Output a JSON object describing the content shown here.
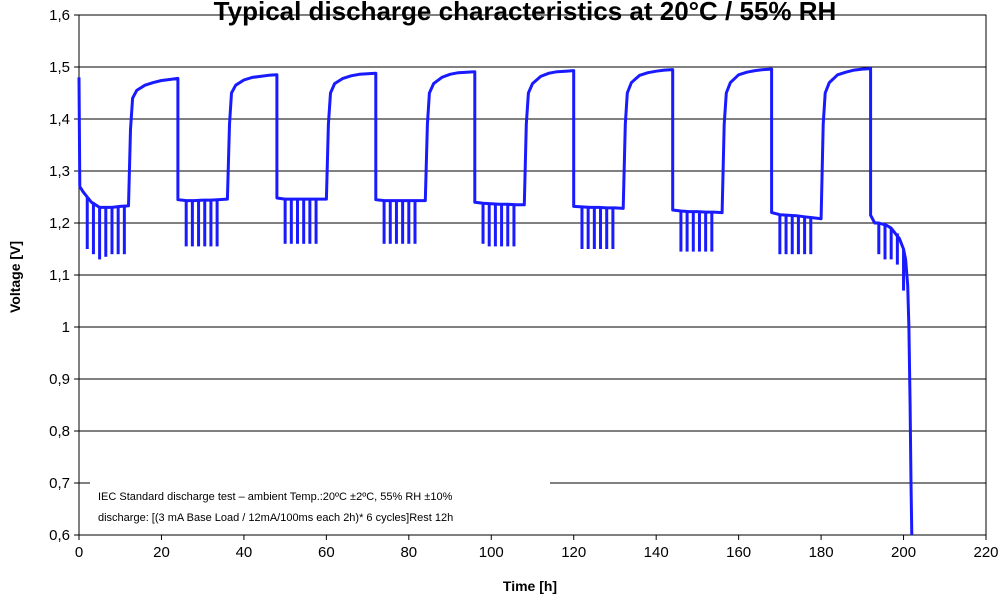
{
  "chart_data": {
    "type": "line",
    "title": "Typical discharge characteristics at 20°C / 55% RH",
    "xlabel": "Time [h]",
    "ylabel": "Voltage [V]",
    "xlim": [
      0,
      220
    ],
    "ylim": [
      0.6,
      1.6
    ],
    "x_ticks": [
      "0",
      "20",
      "40",
      "60",
      "80",
      "100",
      "120",
      "140",
      "160",
      "180",
      "200",
      "220"
    ],
    "y_ticks": [
      "0,6",
      "0,7",
      "0,8",
      "0,9",
      "1",
      "1,1",
      "1,2",
      "1,3",
      "1,4",
      "1,5",
      "1,6"
    ],
    "grid": "horizontal",
    "series_color": "#1a1aff",
    "annotations": [
      "IEC Standard discharge test – ambient Temp.:20ºC ±2ºC, 55% RH ±10%",
      "discharge: [(3 mA Base Load / 12mA/100ms each 2h)* 6 cycles]Rest 12h"
    ],
    "series": [
      {
        "points": [
          [
            0,
            1.48
          ],
          [
            0.2,
            1.27
          ],
          [
            1,
            1.26
          ],
          [
            2,
            1.25
          ],
          [
            3,
            1.24
          ],
          [
            4,
            1.235
          ],
          [
            5,
            1.23
          ],
          [
            6,
            1.23
          ],
          [
            8,
            1.23
          ],
          [
            10,
            1.232
          ],
          [
            12,
            1.233
          ],
          [
            12.5,
            1.38
          ],
          [
            13,
            1.44
          ],
          [
            14,
            1.455
          ],
          [
            16,
            1.465
          ],
          [
            18,
            1.47
          ],
          [
            20,
            1.474
          ],
          [
            22,
            1.476
          ],
          [
            24,
            1.478
          ],
          [
            24,
            1.245
          ],
          [
            26,
            1.243
          ],
          [
            28,
            1.243
          ],
          [
            30,
            1.244
          ],
          [
            32,
            1.244
          ],
          [
            34,
            1.245
          ],
          [
            36,
            1.246
          ],
          [
            36.5,
            1.39
          ],
          [
            37,
            1.45
          ],
          [
            38,
            1.465
          ],
          [
            40,
            1.475
          ],
          [
            42,
            1.48
          ],
          [
            44,
            1.482
          ],
          [
            46,
            1.484
          ],
          [
            48,
            1.485
          ],
          [
            48,
            1.248
          ],
          [
            50,
            1.246
          ],
          [
            52,
            1.246
          ],
          [
            54,
            1.246
          ],
          [
            56,
            1.246
          ],
          [
            58,
            1.246
          ],
          [
            60,
            1.246
          ],
          [
            60.5,
            1.39
          ],
          [
            61,
            1.45
          ],
          [
            62,
            1.468
          ],
          [
            64,
            1.478
          ],
          [
            66,
            1.483
          ],
          [
            68,
            1.486
          ],
          [
            70,
            1.487
          ],
          [
            72,
            1.488
          ],
          [
            72,
            1.245
          ],
          [
            74,
            1.243
          ],
          [
            76,
            1.243
          ],
          [
            78,
            1.243
          ],
          [
            80,
            1.243
          ],
          [
            82,
            1.243
          ],
          [
            84,
            1.243
          ],
          [
            84.5,
            1.39
          ],
          [
            85,
            1.45
          ],
          [
            86,
            1.468
          ],
          [
            88,
            1.48
          ],
          [
            90,
            1.486
          ],
          [
            92,
            1.489
          ],
          [
            94,
            1.49
          ],
          [
            96,
            1.491
          ],
          [
            96,
            1.24
          ],
          [
            98,
            1.238
          ],
          [
            100,
            1.237
          ],
          [
            102,
            1.236
          ],
          [
            104,
            1.236
          ],
          [
            106,
            1.235
          ],
          [
            108,
            1.235
          ],
          [
            108.5,
            1.39
          ],
          [
            109,
            1.45
          ],
          [
            110,
            1.468
          ],
          [
            112,
            1.482
          ],
          [
            114,
            1.488
          ],
          [
            116,
            1.491
          ],
          [
            118,
            1.492
          ],
          [
            120,
            1.493
          ],
          [
            120,
            1.232
          ],
          [
            122,
            1.231
          ],
          [
            124,
            1.23
          ],
          [
            126,
            1.23
          ],
          [
            128,
            1.229
          ],
          [
            130,
            1.229
          ],
          [
            132,
            1.228
          ],
          [
            132.5,
            1.39
          ],
          [
            133,
            1.45
          ],
          [
            134,
            1.47
          ],
          [
            136,
            1.484
          ],
          [
            138,
            1.489
          ],
          [
            140,
            1.492
          ],
          [
            142,
            1.494
          ],
          [
            144,
            1.495
          ],
          [
            144,
            1.225
          ],
          [
            146,
            1.223
          ],
          [
            148,
            1.222
          ],
          [
            150,
            1.222
          ],
          [
            152,
            1.221
          ],
          [
            154,
            1.221
          ],
          [
            156,
            1.22
          ],
          [
            156.5,
            1.39
          ],
          [
            157,
            1.45
          ],
          [
            158,
            1.47
          ],
          [
            160,
            1.485
          ],
          [
            162,
            1.49
          ],
          [
            164,
            1.493
          ],
          [
            166,
            1.495
          ],
          [
            168,
            1.496
          ],
          [
            168,
            1.22
          ],
          [
            170,
            1.216
          ],
          [
            172,
            1.215
          ],
          [
            174,
            1.214
          ],
          [
            176,
            1.212
          ],
          [
            178,
            1.21
          ],
          [
            180,
            1.208
          ],
          [
            180.5,
            1.39
          ],
          [
            181,
            1.45
          ],
          [
            182,
            1.47
          ],
          [
            184,
            1.485
          ],
          [
            186,
            1.49
          ],
          [
            188,
            1.494
          ],
          [
            190,
            1.496
          ],
          [
            192,
            1.497
          ],
          [
            192,
            1.215
          ],
          [
            193,
            1.2
          ],
          [
            194,
            1.2
          ],
          [
            196,
            1.195
          ],
          [
            197,
            1.19
          ],
          [
            198,
            1.18
          ],
          [
            199,
            1.17
          ],
          [
            200,
            1.15
          ],
          [
            200.5,
            1.13
          ],
          [
            201,
            1.08
          ],
          [
            201.3,
            1.0
          ],
          [
            201.6,
            0.85
          ],
          [
            201.8,
            0.7
          ],
          [
            202,
            0.6
          ]
        ],
        "spikes": [
          [
            2,
            1.15
          ],
          [
            3.5,
            1.14
          ],
          [
            5,
            1.13
          ],
          [
            6.5,
            1.135
          ],
          [
            8,
            1.14
          ],
          [
            9.5,
            1.14
          ],
          [
            11,
            1.14
          ],
          [
            26,
            1.155
          ],
          [
            27.5,
            1.155
          ],
          [
            29,
            1.155
          ],
          [
            30.5,
            1.155
          ],
          [
            32,
            1.155
          ],
          [
            33.5,
            1.155
          ],
          [
            50,
            1.16
          ],
          [
            51.5,
            1.16
          ],
          [
            53,
            1.16
          ],
          [
            54.5,
            1.16
          ],
          [
            56,
            1.16
          ],
          [
            57.5,
            1.16
          ],
          [
            74,
            1.16
          ],
          [
            75.5,
            1.16
          ],
          [
            77,
            1.16
          ],
          [
            78.5,
            1.16
          ],
          [
            80,
            1.16
          ],
          [
            81.5,
            1.16
          ],
          [
            98,
            1.16
          ],
          [
            99.5,
            1.155
          ],
          [
            101,
            1.155
          ],
          [
            102.5,
            1.155
          ],
          [
            104,
            1.155
          ],
          [
            105.5,
            1.155
          ],
          [
            122,
            1.15
          ],
          [
            123.5,
            1.15
          ],
          [
            125,
            1.15
          ],
          [
            126.5,
            1.15
          ],
          [
            128,
            1.15
          ],
          [
            129.5,
            1.15
          ],
          [
            146,
            1.145
          ],
          [
            147.5,
            1.145
          ],
          [
            149,
            1.145
          ],
          [
            150.5,
            1.145
          ],
          [
            152,
            1.145
          ],
          [
            153.5,
            1.145
          ],
          [
            170,
            1.14
          ],
          [
            171.5,
            1.14
          ],
          [
            173,
            1.14
          ],
          [
            174.5,
            1.14
          ],
          [
            176,
            1.14
          ],
          [
            177.5,
            1.14
          ],
          [
            194,
            1.14
          ],
          [
            195.5,
            1.13
          ],
          [
            197,
            1.13
          ],
          [
            198.5,
            1.12
          ],
          [
            200,
            1.07
          ]
        ]
      }
    ]
  }
}
